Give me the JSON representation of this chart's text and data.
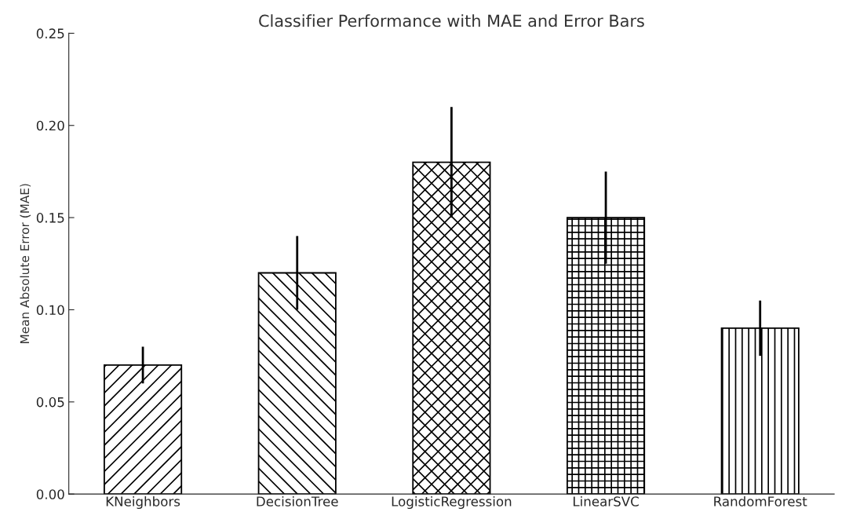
{
  "chart_data": {
    "type": "bar",
    "title": "Classifier Performance with MAE and Error Bars",
    "ylabel": "Mean Absolute Error (MAE)",
    "categories": [
      "KNeighbors",
      "DecisionTree",
      "LogisticRegression",
      "LinearSVC",
      "RandomForest"
    ],
    "values": [
      0.07,
      0.12,
      0.18,
      0.15,
      0.09
    ],
    "errors": [
      0.01,
      0.02,
      0.03,
      0.025,
      0.015
    ],
    "ylim": [
      0,
      0.25
    ],
    "yticks": [
      {
        "value": 0,
        "label": "0.00"
      },
      {
        "value": 0.05,
        "label": "0.05"
      },
      {
        "value": 0.1,
        "label": "0.10"
      },
      {
        "value": 0.15,
        "label": "0.15"
      },
      {
        "value": 0.2,
        "label": "0.20"
      },
      {
        "value": 0.25,
        "label": "0.25"
      }
    ],
    "grid": false,
    "legend": false
  }
}
